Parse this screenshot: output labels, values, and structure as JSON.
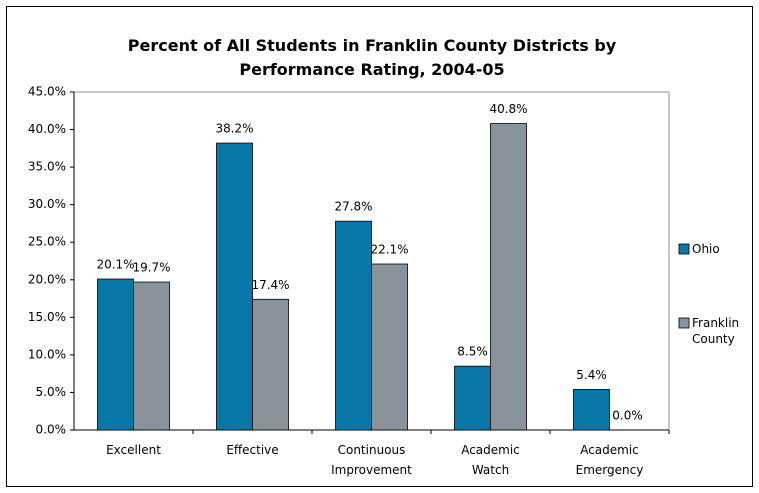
{
  "chart_data": {
    "type": "bar",
    "title": "Percent of All Students in Franklin County Districts by Performance Rating, 2004-05",
    "categories": [
      "Excellent",
      "Effective",
      "Continuous Improvement",
      "Academic Watch",
      "Academic Emergency"
    ],
    "series": [
      {
        "name": "Ohio",
        "color": "#0a77a9",
        "values": [
          20.1,
          38.2,
          27.8,
          8.5,
          5.4
        ],
        "value_labels": [
          "20.1%",
          "38.2%",
          "27.8%",
          "8.5%",
          "5.4%"
        ]
      },
      {
        "name": "Franklin County",
        "color": "#88939c",
        "values": [
          19.7,
          17.4,
          22.1,
          40.8,
          0.0
        ],
        "value_labels": [
          "19.7%",
          "17.4%",
          "22.1%",
          "40.8%",
          "0.0%"
        ]
      }
    ],
    "ylim": [
      0,
      45
    ],
    "yticks": [
      {
        "value": 0,
        "label": "0.0%"
      },
      {
        "value": 5,
        "label": "5.0%"
      },
      {
        "value": 10,
        "label": "10.0%"
      },
      {
        "value": 15,
        "label": "15.0%"
      },
      {
        "value": 20,
        "label": "20.0%"
      },
      {
        "value": 25,
        "label": "25.0%"
      },
      {
        "value": 30,
        "label": "30.0%"
      },
      {
        "value": 35,
        "label": "35.0%"
      },
      {
        "value": 40,
        "label": "40.0%"
      },
      {
        "value": 45,
        "label": "45.0%"
      }
    ],
    "grid": false,
    "legend": "right"
  }
}
